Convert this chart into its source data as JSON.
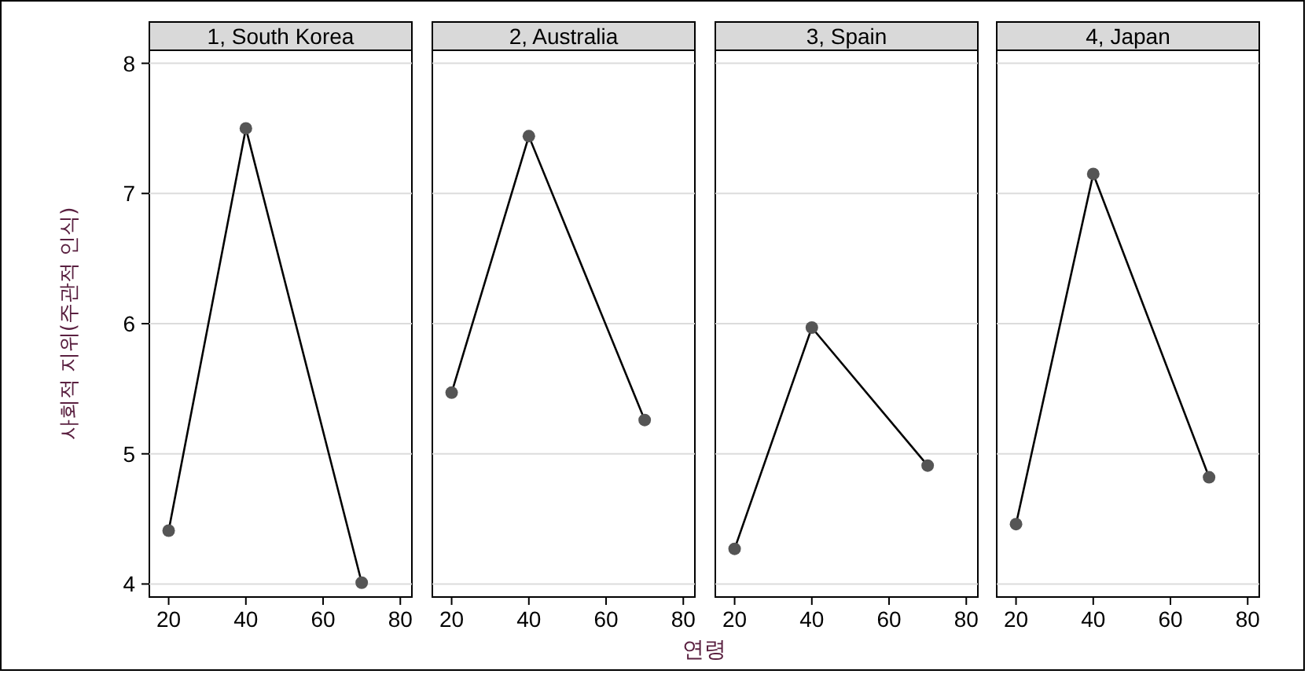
{
  "chart_data": [
    {
      "type": "line",
      "title": "1, South Korea",
      "ylabel": "사회적 지위(주관적 인식)",
      "x": [
        20,
        40,
        70
      ],
      "values": [
        4.41,
        7.5,
        4.01
      ],
      "color": "#000000",
      "marker": "circle",
      "xlim": [
        15,
        83
      ],
      "xticks": [
        20,
        40,
        60,
        80
      ],
      "ylim": [
        3.9,
        8.1
      ],
      "yticks": [
        4,
        5,
        6,
        7,
        8
      ],
      "grid": "y"
    },
    {
      "type": "line",
      "title": "2, Australia",
      "xlabel": "연령",
      "x": [
        20,
        40,
        70
      ],
      "values": [
        5.47,
        7.44,
        5.26
      ],
      "color": "#000000",
      "marker": "circle",
      "xlim": [
        15,
        83
      ],
      "xticks": [
        20,
        40,
        60,
        80
      ],
      "ylim": [
        3.9,
        8.1
      ],
      "yticks": [
        4,
        5,
        6,
        7,
        8
      ],
      "grid": "y",
      "tick_labels": "x"
    },
    {
      "type": "line",
      "title": "3, Spain",
      "x": [
        20,
        40,
        70
      ],
      "values": [
        4.27,
        5.97,
        4.91
      ],
      "color": "#000000",
      "marker": "circle",
      "xlim": [
        15,
        83
      ],
      "xticks": [
        20,
        40,
        60,
        80
      ],
      "ylim": [
        3.9,
        8.1
      ],
      "yticks": [
        4,
        5,
        6,
        7,
        8
      ],
      "grid": "y",
      "tick_labels": "x"
    },
    {
      "type": "line",
      "title": "4, Japan",
      "x": [
        20,
        40,
        70
      ],
      "values": [
        4.46,
        7.15,
        4.82
      ],
      "color": "#000000",
      "marker": "circle",
      "xlim": [
        15,
        83
      ],
      "xticks": [
        20,
        40,
        60,
        80
      ],
      "ylim": [
        3.9,
        8.1
      ],
      "yticks": [
        4,
        5,
        6,
        7,
        8
      ],
      "grid": "y",
      "tick_labels": "x"
    }
  ]
}
